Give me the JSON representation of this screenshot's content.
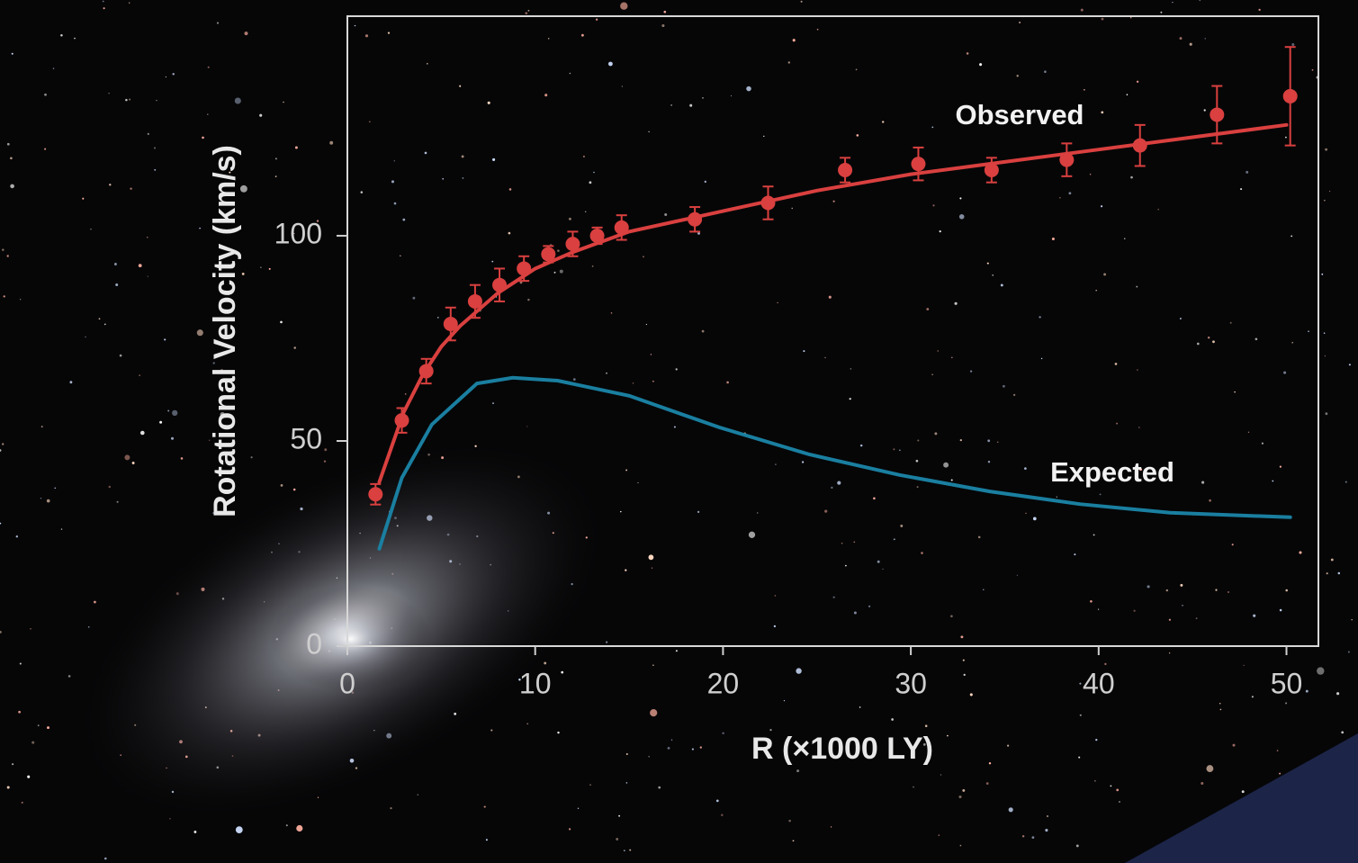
{
  "chart_data": {
    "type": "line",
    "xlabel": "R (×1000 LY)",
    "ylabel": "Rotational Velocity (km/s)",
    "xlim": [
      0,
      51.7
    ],
    "ylim": [
      0,
      153.5
    ],
    "xticks": [
      0,
      10,
      20,
      30,
      40,
      50
    ],
    "yticks": [
      0,
      50,
      100
    ],
    "series": [
      {
        "name": "Observed",
        "color": "#d9403f",
        "mode": "markers",
        "x": [
          1.5,
          2.9,
          4.2,
          5.5,
          6.8,
          8.1,
          9.4,
          10.7,
          12.0,
          13.3,
          14.6,
          18.5,
          22.4,
          26.5,
          30.4,
          34.3,
          38.3,
          42.2,
          46.3,
          50.2
        ],
        "values": [
          37,
          55,
          67,
          78.5,
          84,
          88,
          92,
          95.5,
          98,
          100,
          102,
          104,
          108,
          116,
          117.5,
          116,
          118.5,
          122,
          129.5,
          134
        ],
        "errors": [
          2.5,
          3,
          3,
          4,
          4,
          4,
          3,
          2,
          3,
          2,
          3,
          3,
          4,
          3,
          4,
          3,
          4,
          5,
          7,
          12
        ]
      },
      {
        "color": "#d9403f",
        "mode": "line",
        "x": [
          1.7,
          3,
          4,
          5,
          6,
          8,
          10,
          12,
          15,
          20,
          25,
          30,
          35,
          40,
          45,
          50
        ],
        "values": [
          40,
          57,
          66,
          73,
          78,
          86,
          92,
          96,
          101,
          106,
          111,
          115,
          118,
          121,
          124,
          127
        ]
      },
      {
        "name": "Expected",
        "color": "#1a7fa0",
        "mode": "line",
        "x": [
          1.7,
          2.9,
          4.5,
          6.9,
          8.8,
          11.2,
          15,
          19.8,
          24.6,
          29.4,
          34.2,
          39,
          43.8,
          50.2
        ],
        "values": [
          23.7,
          41,
          54,
          64,
          65.4,
          64.7,
          61,
          53.3,
          46.7,
          41.7,
          37.7,
          34.6,
          32.5,
          31.4
        ]
      }
    ]
  }
}
